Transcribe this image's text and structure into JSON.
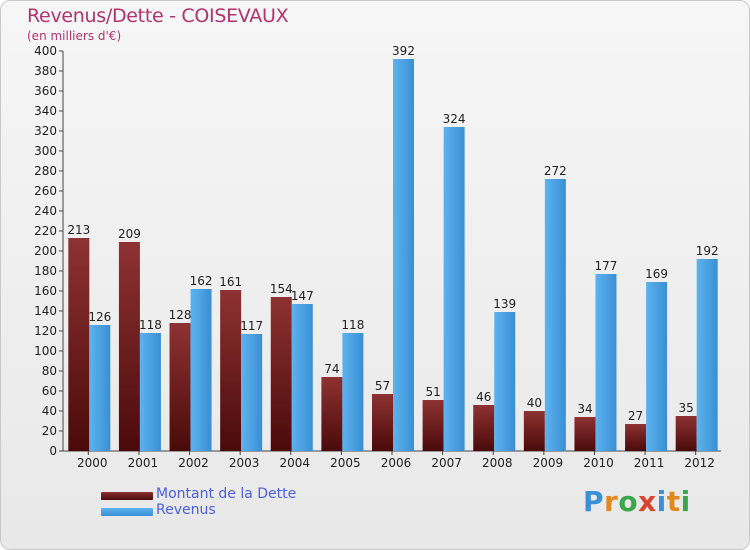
{
  "chart_data": {
    "type": "bar",
    "title": "Revenus/Dette - COISEVAUX",
    "subtitle": "(en milliers d'€)",
    "categories": [
      "2000",
      "2001",
      "2002",
      "2003",
      "2004",
      "2005",
      "2006",
      "2007",
      "2008",
      "2009",
      "2010",
      "2011",
      "2012"
    ],
    "series": [
      {
        "name": "Montant de la Dette",
        "color": "#7a1f1f",
        "values": [
          213,
          209,
          128,
          161,
          154,
          74,
          57,
          51,
          46,
          40,
          34,
          27,
          35
        ]
      },
      {
        "name": "Revenus",
        "color": "#4ea5e6",
        "values": [
          126,
          118,
          162,
          117,
          147,
          118,
          392,
          324,
          139,
          272,
          177,
          169,
          192
        ]
      }
    ],
    "ylim": [
      0,
      400
    ],
    "ytick_step": 20,
    "xlabel": "",
    "ylabel": "",
    "grid": false,
    "legend": "bottom-left"
  },
  "logo": {
    "letters": [
      "P",
      "r",
      "o",
      "x",
      "i",
      "t",
      "i"
    ],
    "colors": [
      "#3b8fd6",
      "#e08a1e",
      "#3aa84a",
      "#d9452b",
      "#3b8fd6",
      "#e08a1e",
      "#3aa84a"
    ]
  }
}
